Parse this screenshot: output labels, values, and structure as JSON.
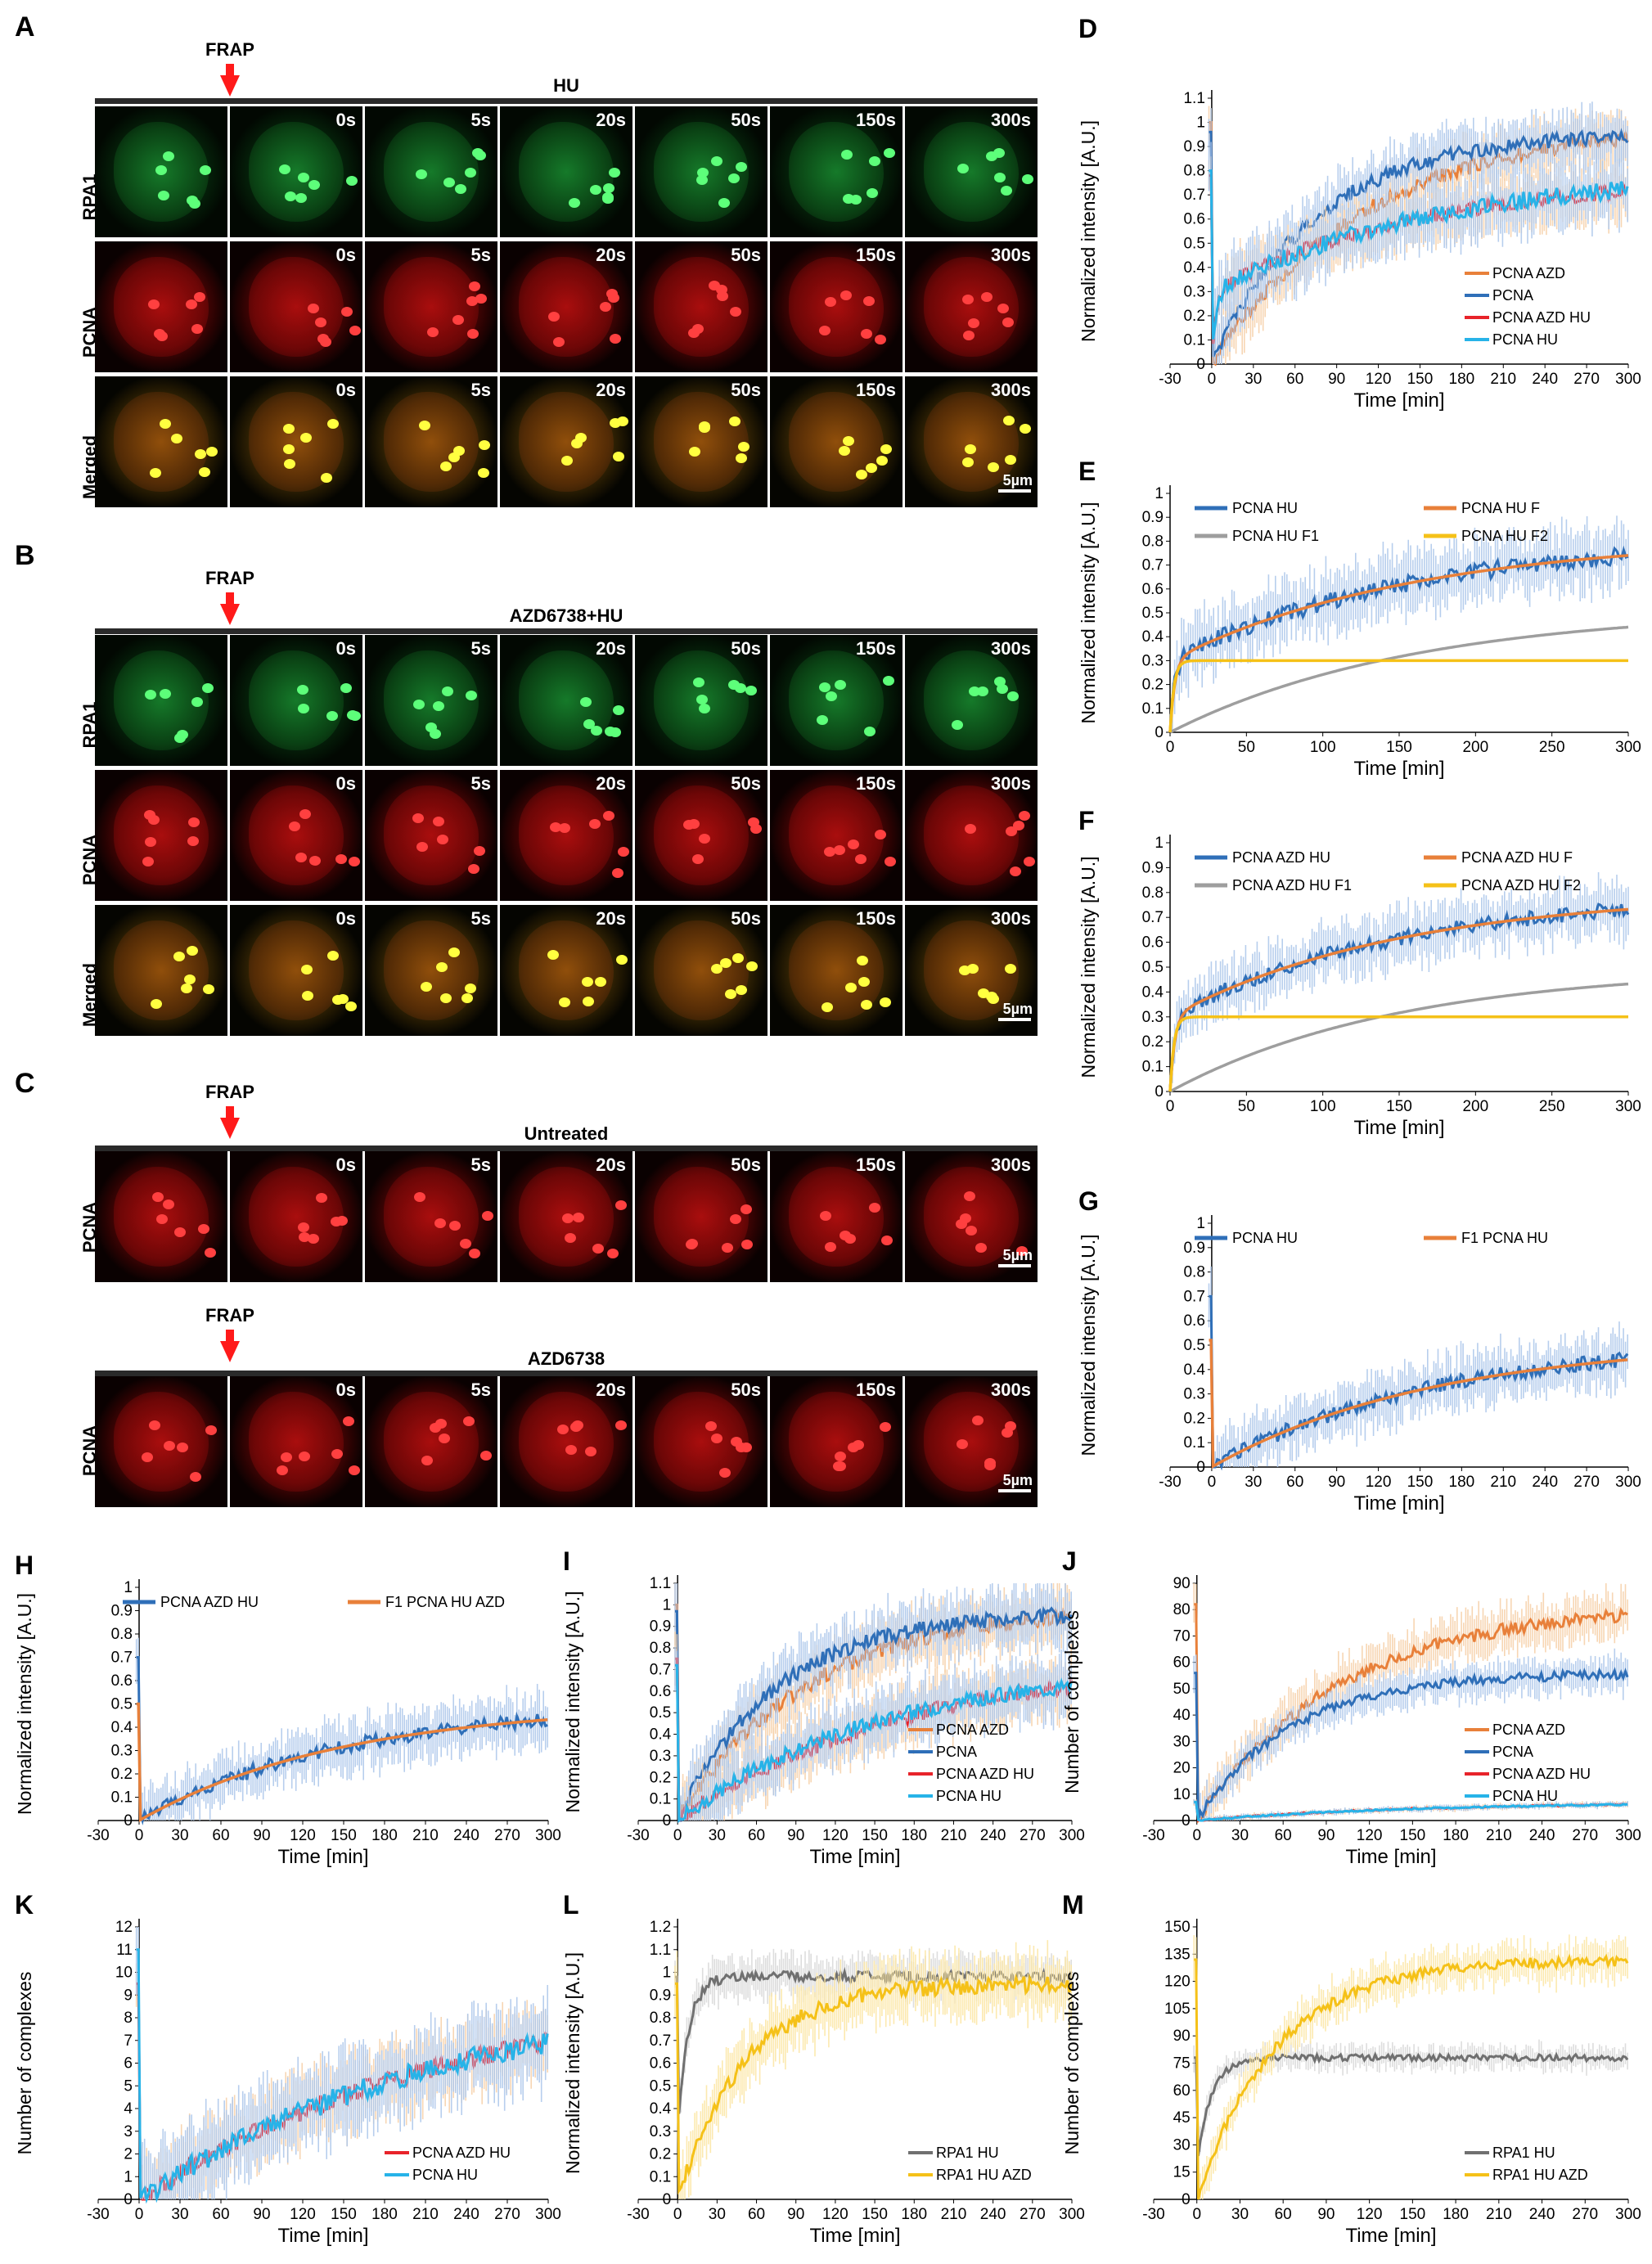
{
  "panels": {
    "A": {
      "label": "A",
      "frap": "FRAP",
      "condition": "HU",
      "rows": [
        "RPA1",
        "PCNA",
        "Merged"
      ]
    },
    "B": {
      "label": "B",
      "frap": "FRAP",
      "condition": "AZD6738+HU",
      "rows": [
        "RPA1",
        "PCNA",
        "Merged"
      ]
    },
    "C": {
      "label": "C",
      "frap1": "FRAP",
      "condition1": "Untreated",
      "frap2": "FRAP",
      "condition2": "AZD6738",
      "rows": [
        "PCNA",
        "PCNA"
      ]
    }
  },
  "timepoints": [
    "0s",
    "5s",
    "20s",
    "50s",
    "150s",
    "300s"
  ],
  "scale_bar": "5µm",
  "colors": {
    "blue": "#2f6fb8",
    "orange": "#e8803a",
    "red": "#e8232a",
    "cyan": "#27b3e8",
    "grey": "#9e9e9e",
    "yellow": "#f5c118",
    "dgrey": "#707070",
    "band_blue": "#aac6ea",
    "band_orange": "#f6cfa6",
    "band_yellow": "#fbe5a1",
    "band_grey": "#d7d7d7"
  },
  "chart_data": [
    {
      "id": "D",
      "type": "line",
      "ylabel": "Normalized intensity [A.U.]",
      "xlabel": "Time [min]",
      "xlim": [
        -30,
        300
      ],
      "xticks": [
        -30,
        0,
        30,
        60,
        90,
        120,
        150,
        180,
        210,
        240,
        270,
        300
      ],
      "ylim": [
        0,
        1.1
      ],
      "yticks": [
        0,
        0.1,
        0.2,
        0.3,
        0.4,
        0.5,
        0.6,
        0.7,
        0.8,
        0.9,
        1,
        1.1
      ],
      "legend": "bottom-right",
      "series": [
        {
          "name": "PCNA AZD",
          "color": "orange",
          "kind": "exp",
          "plateau": 1.0,
          "tau": 110,
          "start": 0.0,
          "noise": 0.1
        },
        {
          "name": "PCNA",
          "color": "blue",
          "kind": "exp",
          "plateau": 0.96,
          "tau": 75,
          "start": 0.0,
          "noise": 0.1
        },
        {
          "name": "PCNA AZD HU",
          "color": "red",
          "kind": "biexp",
          "fast": 0.3,
          "slow": 0.48,
          "tau": 150,
          "noise": 0.1
        },
        {
          "name": "PCNA HU",
          "color": "cyan",
          "kind": "biexp",
          "fast": 0.3,
          "slow": 0.5,
          "tau": 160,
          "noise": 0.12
        }
      ]
    },
    {
      "id": "E",
      "type": "line",
      "ylabel": "Normalized intensity [A.U.]",
      "xlabel": "Time [min]",
      "xlim": [
        0,
        300
      ],
      "xticks": [
        0,
        50,
        100,
        150,
        200,
        250,
        300
      ],
      "ylim": [
        0,
        1
      ],
      "yticks": [
        0,
        0.1,
        0.2,
        0.3,
        0.4,
        0.5,
        0.6,
        0.7,
        0.8,
        0.9,
        1
      ],
      "legend": "top",
      "series": [
        {
          "name": "PCNA HU",
          "color": "blue",
          "kind": "biexp",
          "fast": 0.3,
          "slow": 0.52,
          "tau": 160,
          "noise": 0.12
        },
        {
          "name": "PCNA HU F",
          "color": "orange",
          "kind": "biexp",
          "fast": 0.3,
          "slow": 0.52,
          "tau": 160,
          "noise": 0
        },
        {
          "name": "PCNA HU F1",
          "color": "grey",
          "kind": "exp",
          "plateau": 0.52,
          "tau": 160,
          "start": 0,
          "noise": 0
        },
        {
          "name": "PCNA HU F2",
          "color": "yellow",
          "kind": "step",
          "plateau": 0.3,
          "noise": 0
        }
      ]
    },
    {
      "id": "F",
      "type": "line",
      "ylabel": "Normalized intensity [A.U.]",
      "xlabel": "Time [min]",
      "xlim": [
        0,
        300
      ],
      "xticks": [
        0,
        50,
        100,
        150,
        200,
        250,
        300
      ],
      "ylim": [
        0,
        1
      ],
      "yticks": [
        0,
        0.1,
        0.2,
        0.3,
        0.4,
        0.5,
        0.6,
        0.7,
        0.8,
        0.9,
        1
      ],
      "legend": "top",
      "series": [
        {
          "name": "PCNA AZD HU",
          "color": "blue",
          "kind": "biexp",
          "fast": 0.3,
          "slow": 0.5,
          "tau": 150,
          "noise": 0.1
        },
        {
          "name": "PCNA AZD HU F",
          "color": "orange",
          "kind": "biexp",
          "fast": 0.3,
          "slow": 0.5,
          "tau": 150,
          "noise": 0
        },
        {
          "name": "PCNA AZD HU F1",
          "color": "grey",
          "kind": "exp",
          "plateau": 0.5,
          "tau": 150,
          "start": 0,
          "noise": 0
        },
        {
          "name": "PCNA AZD HU F2",
          "color": "yellow",
          "kind": "step",
          "plateau": 0.3,
          "noise": 0
        }
      ]
    },
    {
      "id": "G",
      "type": "line",
      "ylabel": "Normalized intensity [A.U.]",
      "xlabel": "Time [min]",
      "xlim": [
        -30,
        300
      ],
      "xticks": [
        -30,
        0,
        30,
        60,
        90,
        120,
        150,
        180,
        210,
        240,
        270,
        300
      ],
      "ylim": [
        0,
        1
      ],
      "yticks": [
        0,
        0.1,
        0.2,
        0.3,
        0.4,
        0.5,
        0.6,
        0.7,
        0.8,
        0.9,
        1
      ],
      "legend": "top",
      "series": [
        {
          "name": "PCNA HU",
          "color": "blue",
          "kind": "exp",
          "plateau": 0.52,
          "tau": 160,
          "start": 0,
          "noise": 0.1,
          "spike": 0.7
        },
        {
          "name": "F1 PCNA HU",
          "color": "orange",
          "kind": "exp",
          "plateau": 0.52,
          "tau": 160,
          "start": 0,
          "noise": 0
        }
      ]
    },
    {
      "id": "H",
      "type": "line",
      "ylabel": "Normalized intensity [A.U.]",
      "xlabel": "Time [min]",
      "xlim": [
        -30,
        300
      ],
      "xticks": [
        -30,
        0,
        30,
        60,
        90,
        120,
        150,
        180,
        210,
        240,
        270,
        300
      ],
      "ylim": [
        0,
        1
      ],
      "yticks": [
        0,
        0.1,
        0.2,
        0.3,
        0.4,
        0.5,
        0.6,
        0.7,
        0.8,
        0.9,
        1
      ],
      "legend": "top",
      "series": [
        {
          "name": "PCNA AZD HU",
          "color": "blue",
          "kind": "exp",
          "plateau": 0.5,
          "tau": 150,
          "start": 0,
          "noise": 0.1,
          "spike": 0.7
        },
        {
          "name": "F1 PCNA HU AZD",
          "color": "orange",
          "kind": "exp",
          "plateau": 0.5,
          "tau": 150,
          "start": 0,
          "noise": 0
        }
      ]
    },
    {
      "id": "I",
      "type": "line",
      "ylabel": "Normalized intensity [A.U.]",
      "xlabel": "Time [min]",
      "xlim": [
        -30,
        300
      ],
      "xticks": [
        -30,
        0,
        30,
        60,
        90,
        120,
        150,
        180,
        210,
        240,
        270,
        300
      ],
      "ylim": [
        0,
        1.1
      ],
      "yticks": [
        0,
        0.1,
        0.2,
        0.3,
        0.4,
        0.5,
        0.6,
        0.7,
        0.8,
        0.9,
        1,
        1.1
      ],
      "legend": "bottom-right",
      "series": [
        {
          "name": "PCNA AZD",
          "color": "orange",
          "kind": "exp",
          "plateau": 1.0,
          "tau": 100,
          "start": 0,
          "noise": 0.12
        },
        {
          "name": "PCNA",
          "color": "blue",
          "kind": "exp",
          "plateau": 0.97,
          "tau": 75,
          "start": 0,
          "noise": 0.12
        },
        {
          "name": "PCNA AZD HU",
          "color": "red",
          "kind": "exp",
          "plateau": 0.75,
          "tau": 170,
          "start": 0,
          "noise": 0.12
        },
        {
          "name": "PCNA HU",
          "color": "cyan",
          "kind": "exp",
          "plateau": 0.72,
          "tau": 150,
          "start": 0,
          "noise": 0.12
        }
      ]
    },
    {
      "id": "J",
      "type": "line",
      "ylabel": "Number of complexes",
      "xlabel": "Time [min]",
      "xlim": [
        -30,
        300
      ],
      "xticks": [
        -30,
        0,
        30,
        60,
        90,
        120,
        150,
        180,
        210,
        240,
        270,
        300
      ],
      "ylim": [
        0,
        90
      ],
      "yticks": [
        0,
        10,
        20,
        30,
        40,
        50,
        60,
        70,
        80,
        90
      ],
      "legend": "bottom-right",
      "series": [
        {
          "name": "PCNA AZD",
          "color": "orange",
          "kind": "exp",
          "plateau": 82,
          "tau": 100,
          "start": 0,
          "noise": 8
        },
        {
          "name": "PCNA",
          "color": "blue",
          "kind": "exp",
          "plateau": 56,
          "tau": 65,
          "start": 0,
          "noise": 6
        },
        {
          "name": "PCNA AZD HU",
          "color": "red",
          "kind": "exp",
          "plateau": 7,
          "tau": 150,
          "start": 0,
          "noise": 1
        },
        {
          "name": "PCNA HU",
          "color": "cyan",
          "kind": "exp",
          "plateau": 7,
          "tau": 150,
          "start": 0,
          "noise": 1
        }
      ]
    },
    {
      "id": "K",
      "type": "line",
      "ylabel": "Number of complexes",
      "xlabel": "Time [min]",
      "xlim": [
        -30,
        300
      ],
      "xticks": [
        -30,
        0,
        30,
        60,
        90,
        120,
        150,
        180,
        210,
        240,
        270,
        300
      ],
      "ylim": [
        0,
        12
      ],
      "yticks": [
        0,
        1,
        2,
        3,
        4,
        5,
        6,
        7,
        8,
        9,
        10,
        11,
        12
      ],
      "legend": "bottom-right",
      "series": [
        {
          "name": "PCNA AZD HU",
          "color": "red",
          "kind": "exp",
          "plateau": 9.5,
          "tau": 230,
          "start": 0,
          "noise": 1.4
        },
        {
          "name": "PCNA HU",
          "color": "cyan",
          "kind": "exp",
          "plateau": 9.5,
          "tau": 230,
          "start": 0,
          "noise": 1.6,
          "spike": 11
        }
      ]
    },
    {
      "id": "L",
      "type": "line",
      "ylabel": "Normalized intensity [A.U.]",
      "xlabel": "Time [min]",
      "xlim": [
        -30,
        300
      ],
      "xticks": [
        -30,
        0,
        30,
        60,
        90,
        120,
        150,
        180,
        210,
        240,
        270,
        300
      ],
      "ylim": [
        0,
        1.2
      ],
      "yticks": [
        0,
        0.1,
        0.2,
        0.3,
        0.4,
        0.5,
        0.6,
        0.7,
        0.8,
        0.9,
        1,
        1.1,
        1.2
      ],
      "legend": "bottom-right",
      "series": [
        {
          "name": "RPA1 HU",
          "color": "dgrey",
          "kind": "exp",
          "plateau": 0.98,
          "tau": 8,
          "start": 0.3,
          "noise": 0.08
        },
        {
          "name": "RPA1 HU AZD",
          "color": "yellow",
          "kind": "exp",
          "plateau": 0.95,
          "tau": 50,
          "start": 0,
          "noise": 0.12
        }
      ]
    },
    {
      "id": "M",
      "type": "line",
      "ylabel": "Number of complexes",
      "xlabel": "Time [min]",
      "xlim": [
        -30,
        300
      ],
      "xticks": [
        -30,
        0,
        30,
        60,
        90,
        120,
        150,
        180,
        210,
        240,
        270,
        300
      ],
      "ylim": [
        0,
        150
      ],
      "yticks": [
        0,
        15,
        30,
        45,
        60,
        75,
        90,
        105,
        120,
        135,
        150
      ],
      "legend": "bottom-right",
      "series": [
        {
          "name": "RPA1 HU",
          "color": "dgrey",
          "kind": "exp",
          "plateau": 78,
          "tau": 10,
          "start": 20,
          "noise": 6
        },
        {
          "name": "RPA1 HU AZD",
          "color": "yellow",
          "kind": "exp",
          "plateau": 132,
          "tau": 55,
          "start": 0,
          "noise": 10
        }
      ]
    }
  ]
}
